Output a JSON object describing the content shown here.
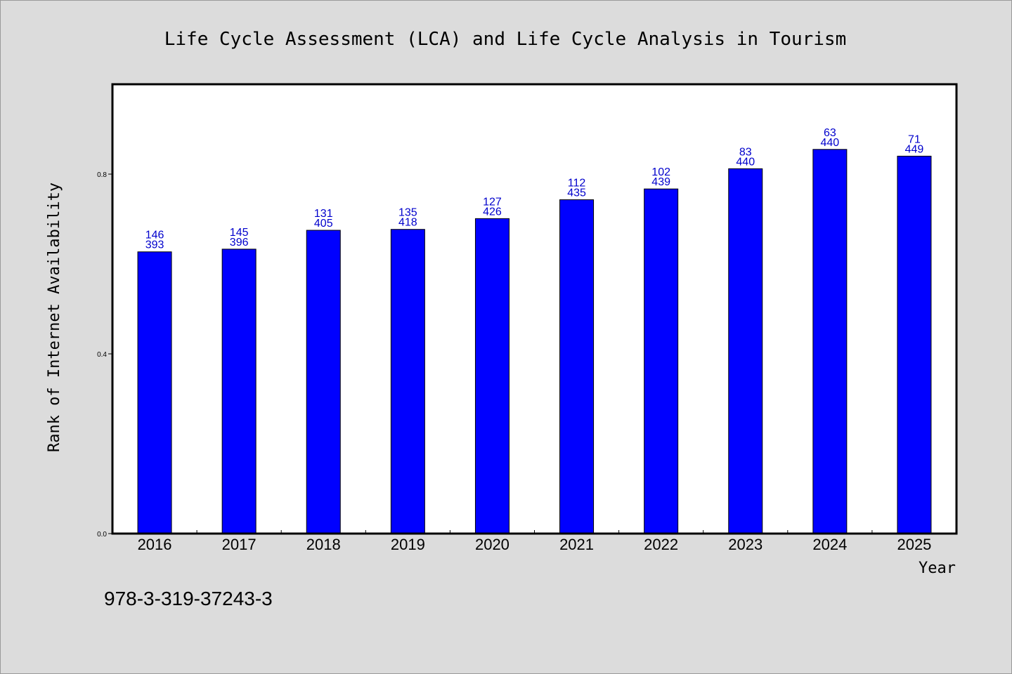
{
  "chart_data": {
    "type": "bar",
    "title": "Life Cycle Assessment (LCA) and Life Cycle Analysis in Tourism",
    "xlabel": "Year",
    "ylabel": "Rank of Internet Availability",
    "ylim": [
      0,
      1.0
    ],
    "yticks": [
      "0.0",
      "0.4",
      "0.8"
    ],
    "grid": false,
    "legend": "none",
    "bar_color": "#0000ff",
    "label_color": "#0000cc",
    "categories": [
      "2016",
      "2017",
      "2018",
      "2019",
      "2020",
      "2021",
      "2022",
      "2023",
      "2024",
      "2025"
    ],
    "values": [
      0.627,
      0.633,
      0.675,
      0.677,
      0.701,
      0.743,
      0.767,
      0.812,
      0.855,
      0.84
    ],
    "labels_top": [
      "146",
      "145",
      "131",
      "135",
      "127",
      "112",
      "102",
      "83",
      "63",
      "71"
    ],
    "labels_bottom": [
      "393",
      "396",
      "405",
      "418",
      "426",
      "435",
      "439",
      "440",
      "440",
      "449"
    ]
  },
  "footer": {
    "isbn": "978-3-319-37243-3"
  }
}
